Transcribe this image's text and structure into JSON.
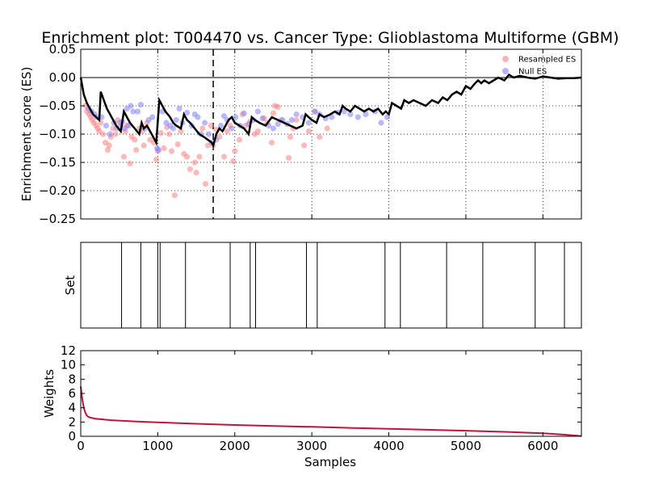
{
  "title": "Enrichment plot: T004470 vs. Cancer Type: Glioblastoma Multiforme (GBM)",
  "chart_data": [
    {
      "type": "line",
      "id": "es",
      "ylabel": "Enrichment score (ES)",
      "xlim": [
        0,
        6500
      ],
      "ylim": [
        -0.25,
        0.05
      ],
      "yticks": [
        0.05,
        0.0,
        -0.05,
        -0.1,
        -0.15,
        -0.2,
        -0.25
      ],
      "ytick_labels": [
        "0.05",
        "0.00",
        "−0.05",
        "−0.10",
        "−0.15",
        "−0.20",
        "−0.25"
      ],
      "xticks": [
        0,
        1000,
        2000,
        3000,
        4000,
        5000,
        6000
      ],
      "grid": true,
      "legend_position": "top-right",
      "legend": [
        {
          "label": "Resampled ES",
          "color": "#ff8080"
        },
        {
          "label": "Null ES",
          "color": "#8080ff"
        }
      ],
      "vline_x": 1720,
      "es_curve": {
        "x": [
          0,
          40,
          80,
          120,
          160,
          200,
          240,
          260,
          300,
          340,
          400,
          460,
          520,
          560,
          600,
          640,
          700,
          760,
          790,
          820,
          860,
          920,
          980,
          1020,
          1060,
          1100,
          1160,
          1200,
          1240,
          1300,
          1340,
          1380,
          1420,
          1480,
          1540,
          1600,
          1650,
          1700,
          1720,
          1760,
          1800,
          1840,
          1880,
          1920,
          1960,
          2000,
          2060,
          2120,
          2180,
          2220,
          2260,
          2320,
          2400,
          2480,
          2560,
          2640,
          2720,
          2800,
          2880,
          2920,
          2960,
          3000,
          3060,
          3100,
          3160,
          3240,
          3300,
          3360,
          3400,
          3440,
          3500,
          3560,
          3620,
          3680,
          3740,
          3800,
          3860,
          3920,
          3960,
          4000,
          4040,
          4100,
          4160,
          4200,
          4260,
          4320,
          4400,
          4480,
          4560,
          4640,
          4700,
          4760,
          4820,
          4880,
          4940,
          5000,
          5060,
          5120,
          5160,
          5200,
          5240,
          5300,
          5360,
          5420,
          5500,
          5560,
          5620,
          5700,
          5800,
          5900,
          6000,
          6100,
          6200,
          6300,
          6400,
          6500
        ],
        "y": [
          0.0,
          -0.03,
          -0.045,
          -0.055,
          -0.065,
          -0.07,
          -0.075,
          -0.025,
          -0.04,
          -0.055,
          -0.07,
          -0.085,
          -0.095,
          -0.06,
          -0.07,
          -0.08,
          -0.09,
          -0.1,
          -0.08,
          -0.09,
          -0.085,
          -0.1,
          -0.115,
          -0.04,
          -0.05,
          -0.06,
          -0.07,
          -0.08,
          -0.085,
          -0.09,
          -0.065,
          -0.075,
          -0.08,
          -0.09,
          -0.1,
          -0.105,
          -0.11,
          -0.115,
          -0.12,
          -0.1,
          -0.09,
          -0.095,
          -0.085,
          -0.075,
          -0.07,
          -0.08,
          -0.085,
          -0.09,
          -0.1,
          -0.07,
          -0.075,
          -0.08,
          -0.085,
          -0.07,
          -0.075,
          -0.08,
          -0.085,
          -0.09,
          -0.085,
          -0.065,
          -0.07,
          -0.075,
          -0.08,
          -0.065,
          -0.07,
          -0.065,
          -0.06,
          -0.065,
          -0.05,
          -0.055,
          -0.06,
          -0.05,
          -0.055,
          -0.06,
          -0.055,
          -0.06,
          -0.055,
          -0.065,
          -0.06,
          -0.065,
          -0.045,
          -0.05,
          -0.055,
          -0.04,
          -0.045,
          -0.04,
          -0.045,
          -0.05,
          -0.04,
          -0.045,
          -0.035,
          -0.04,
          -0.03,
          -0.025,
          -0.03,
          -0.015,
          -0.02,
          -0.01,
          -0.005,
          -0.01,
          -0.005,
          -0.01,
          -0.005,
          0.0,
          -0.005,
          0.005,
          0.0,
          0.003,
          0.0,
          -0.002,
          0.002,
          0.0,
          -0.002,
          -0.001,
          -0.001,
          0.0
        ],
        "color": "#000000"
      },
      "resampled_es": {
        "x": [
          60,
          80,
          110,
          130,
          150,
          170,
          200,
          220,
          240,
          260,
          290,
          320,
          350,
          370,
          390,
          420,
          450,
          480,
          520,
          560,
          580,
          600,
          640,
          660,
          700,
          720,
          760,
          800,
          820,
          860,
          900,
          950,
          980,
          1000,
          1040,
          1080,
          1120,
          1150,
          1180,
          1220,
          1260,
          1300,
          1340,
          1380,
          1420,
          1480,
          1500,
          1540,
          1580,
          1620,
          1650,
          1690,
          1720,
          1760,
          1800,
          1860,
          1900,
          1940,
          1980,
          2000,
          2060,
          2100,
          2140,
          2200,
          2260,
          2300,
          2380,
          2420,
          2480,
          2500,
          2520,
          2560,
          2600,
          2700,
          2720,
          2760,
          2800,
          2900,
          2960,
          3040,
          3100,
          3200
        ],
        "y": [
          -0.05,
          -0.06,
          -0.065,
          -0.07,
          -0.075,
          -0.08,
          -0.085,
          -0.09,
          -0.095,
          -0.08,
          -0.1,
          -0.115,
          -0.128,
          -0.12,
          -0.105,
          -0.09,
          -0.1,
          -0.075,
          -0.085,
          -0.14,
          -0.095,
          -0.085,
          -0.152,
          -0.105,
          -0.11,
          -0.128,
          -0.09,
          -0.095,
          -0.12,
          -0.08,
          -0.11,
          -0.115,
          -0.145,
          -0.13,
          -0.098,
          -0.125,
          -0.088,
          -0.1,
          -0.13,
          -0.208,
          -0.118,
          -0.095,
          -0.135,
          -0.14,
          -0.162,
          -0.15,
          -0.168,
          -0.14,
          -0.09,
          -0.188,
          -0.12,
          -0.085,
          -0.12,
          -0.092,
          -0.105,
          -0.14,
          -0.095,
          -0.085,
          -0.148,
          -0.13,
          -0.11,
          -0.065,
          -0.085,
          -0.078,
          -0.1,
          -0.095,
          -0.072,
          -0.08,
          -0.115,
          -0.063,
          -0.05,
          -0.052,
          -0.075,
          -0.142,
          -0.105,
          -0.09,
          -0.075,
          -0.12,
          -0.095,
          -0.06,
          -0.105,
          -0.09
        ],
        "color": "#ff8080"
      },
      "null_es": {
        "x": [
          100,
          140,
          180,
          210,
          270,
          330,
          380,
          430,
          470,
          510,
          540,
          570,
          600,
          620,
          650,
          680,
          740,
          780,
          830,
          880,
          930,
          990,
          1010,
          1060,
          1110,
          1160,
          1200,
          1240,
          1280,
          1320,
          1380,
          1440,
          1480,
          1520,
          1560,
          1610,
          1660,
          1700,
          1760,
          1820,
          1860,
          1900,
          1960,
          2010,
          2070,
          2120,
          2180,
          2240,
          2300,
          2360,
          2440,
          2500,
          2560,
          2620,
          2680,
          2740,
          2800,
          2880,
          2960,
          3040,
          3100,
          3180,
          3260,
          3340,
          3420,
          3500,
          3600,
          3700,
          3820,
          3900,
          3980
        ],
        "y": [
          -0.055,
          -0.06,
          -0.065,
          -0.07,
          -0.07,
          -0.085,
          -0.1,
          -0.08,
          -0.09,
          -0.08,
          -0.078,
          -0.09,
          -0.055,
          -0.085,
          -0.05,
          -0.06,
          -0.06,
          -0.048,
          -0.09,
          -0.075,
          -0.07,
          -0.125,
          -0.128,
          -0.06,
          -0.08,
          -0.085,
          -0.09,
          -0.075,
          -0.055,
          -0.08,
          -0.062,
          -0.085,
          -0.065,
          -0.07,
          -0.1,
          -0.08,
          -0.1,
          -0.115,
          -0.11,
          -0.085,
          -0.068,
          -0.075,
          -0.09,
          -0.07,
          -0.085,
          -0.063,
          -0.082,
          -0.075,
          -0.06,
          -0.072,
          -0.085,
          -0.09,
          -0.082,
          -0.075,
          -0.082,
          -0.075,
          -0.065,
          -0.07,
          -0.08,
          -0.06,
          -0.065,
          -0.072,
          -0.07,
          -0.062,
          -0.06,
          -0.065,
          -0.07,
          -0.065,
          -0.06,
          -0.08,
          -0.07
        ],
        "color": "#8080ff"
      }
    },
    {
      "type": "bar",
      "id": "set",
      "ylabel": "Set",
      "xlim": [
        0,
        6500
      ],
      "set_positions": [
        530,
        780,
        1000,
        1030,
        1360,
        1940,
        2200,
        2270,
        2930,
        3070,
        3950,
        4150,
        4750,
        5220,
        5900,
        6280
      ]
    },
    {
      "type": "line",
      "id": "weights",
      "ylabel": "Weights",
      "xlabel": "Samples",
      "xlim": [
        0,
        6500
      ],
      "ylim": [
        0,
        12
      ],
      "xticks": [
        0,
        1000,
        2000,
        3000,
        4000,
        5000,
        6000
      ],
      "xtick_labels": [
        "0",
        "1000",
        "2000",
        "3000",
        "4000",
        "5000",
        "6000"
      ],
      "yticks": [
        0,
        2,
        4,
        6,
        8,
        10,
        12
      ],
      "ytick_labels": [
        "0",
        "2",
        "4",
        "6",
        "8",
        "10",
        "12"
      ],
      "curve": {
        "x": [
          0,
          20,
          40,
          60,
          80,
          100,
          150,
          200,
          300,
          400,
          500,
          700,
          1000,
          1500,
          2000,
          2500,
          3000,
          3500,
          4000,
          4500,
          5000,
          5500,
          6000,
          6300,
          6500
        ],
        "y": [
          7.0,
          5.2,
          4.0,
          3.3,
          2.9,
          2.7,
          2.55,
          2.45,
          2.35,
          2.25,
          2.2,
          2.08,
          1.95,
          1.75,
          1.58,
          1.45,
          1.32,
          1.18,
          1.05,
          0.92,
          0.78,
          0.62,
          0.42,
          0.22,
          0.02
        ],
        "color": "#c0143c"
      }
    }
  ]
}
